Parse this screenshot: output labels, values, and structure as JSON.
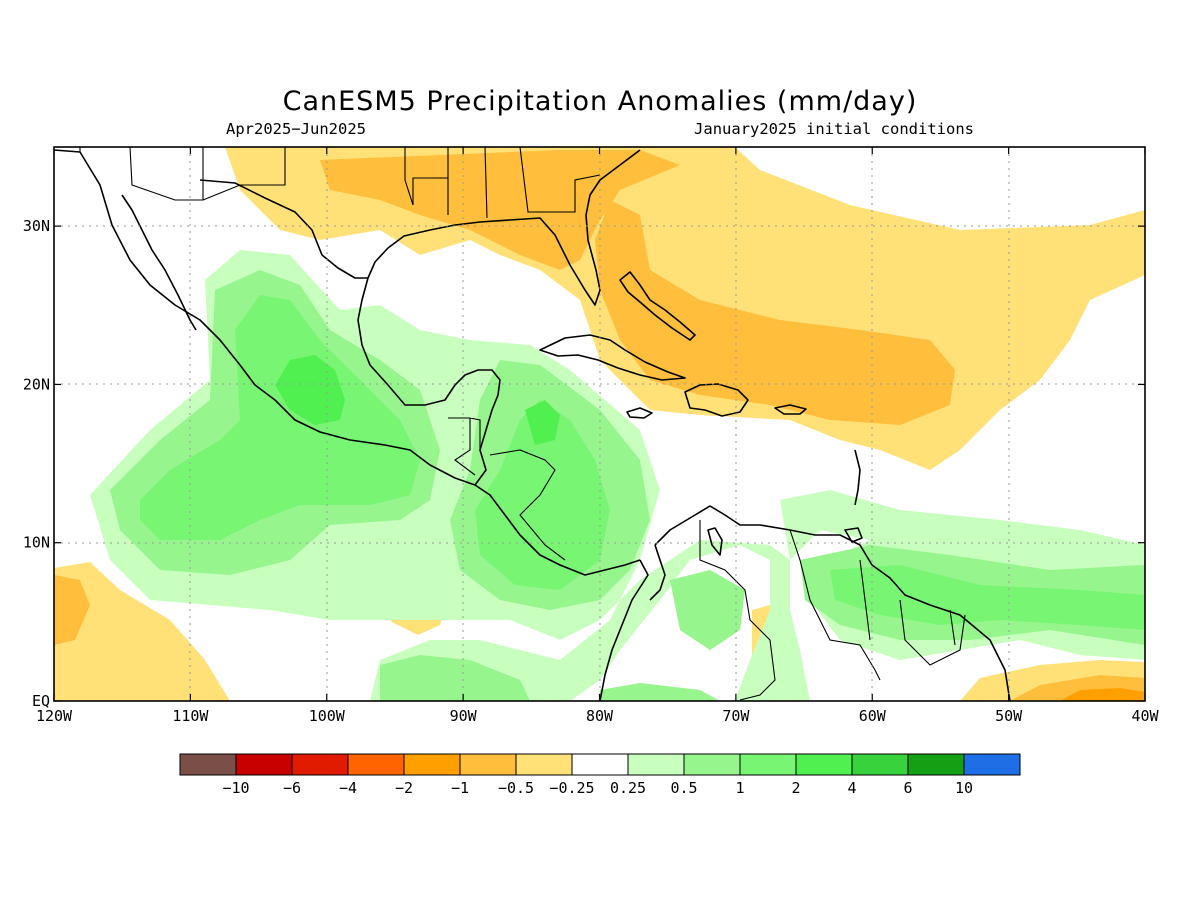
{
  "header": {
    "title": "CanESM5 Precipitation Anomalies (mm/day)",
    "period": "Apr2025−Jun2025",
    "initial_conditions": "January2025 initial conditions"
  },
  "map": {
    "lon_range": [
      -120,
      -40
    ],
    "lat_range": [
      0,
      35
    ],
    "x_ticks": [
      {
        "lon": -120,
        "label": "120W"
      },
      {
        "lon": -110,
        "label": "110W"
      },
      {
        "lon": -100,
        "label": "100W"
      },
      {
        "lon": -90,
        "label": "90W"
      },
      {
        "lon": -80,
        "label": "80W"
      },
      {
        "lon": -70,
        "label": "70W"
      },
      {
        "lon": -60,
        "label": "60W"
      },
      {
        "lon": -50,
        "label": "50W"
      },
      {
        "lon": -40,
        "label": "40W"
      }
    ],
    "y_ticks": [
      {
        "lat": 0,
        "label": "EQ"
      },
      {
        "lat": 10,
        "label": "10N"
      },
      {
        "lat": 20,
        "label": "20N"
      },
      {
        "lat": 30,
        "label": "30N"
      }
    ],
    "grid": "dotted"
  },
  "colorbar": {
    "colors": [
      "#7a4f48",
      "#c80000",
      "#e11b00",
      "#ff6400",
      "#ffa000",
      "#ffbe3c",
      "#ffe178",
      "#ffffff",
      "#c8ffbe",
      "#96f58c",
      "#78f573",
      "#50f050",
      "#37d23c",
      "#14a014",
      "#1e6ee6"
    ],
    "labels": [
      "−10",
      "−6",
      "−4",
      "−2",
      "−1",
      "−0.5",
      "−0.25",
      "0.25",
      "0.5",
      "1",
      "2",
      "4",
      "6",
      "10"
    ]
  }
}
